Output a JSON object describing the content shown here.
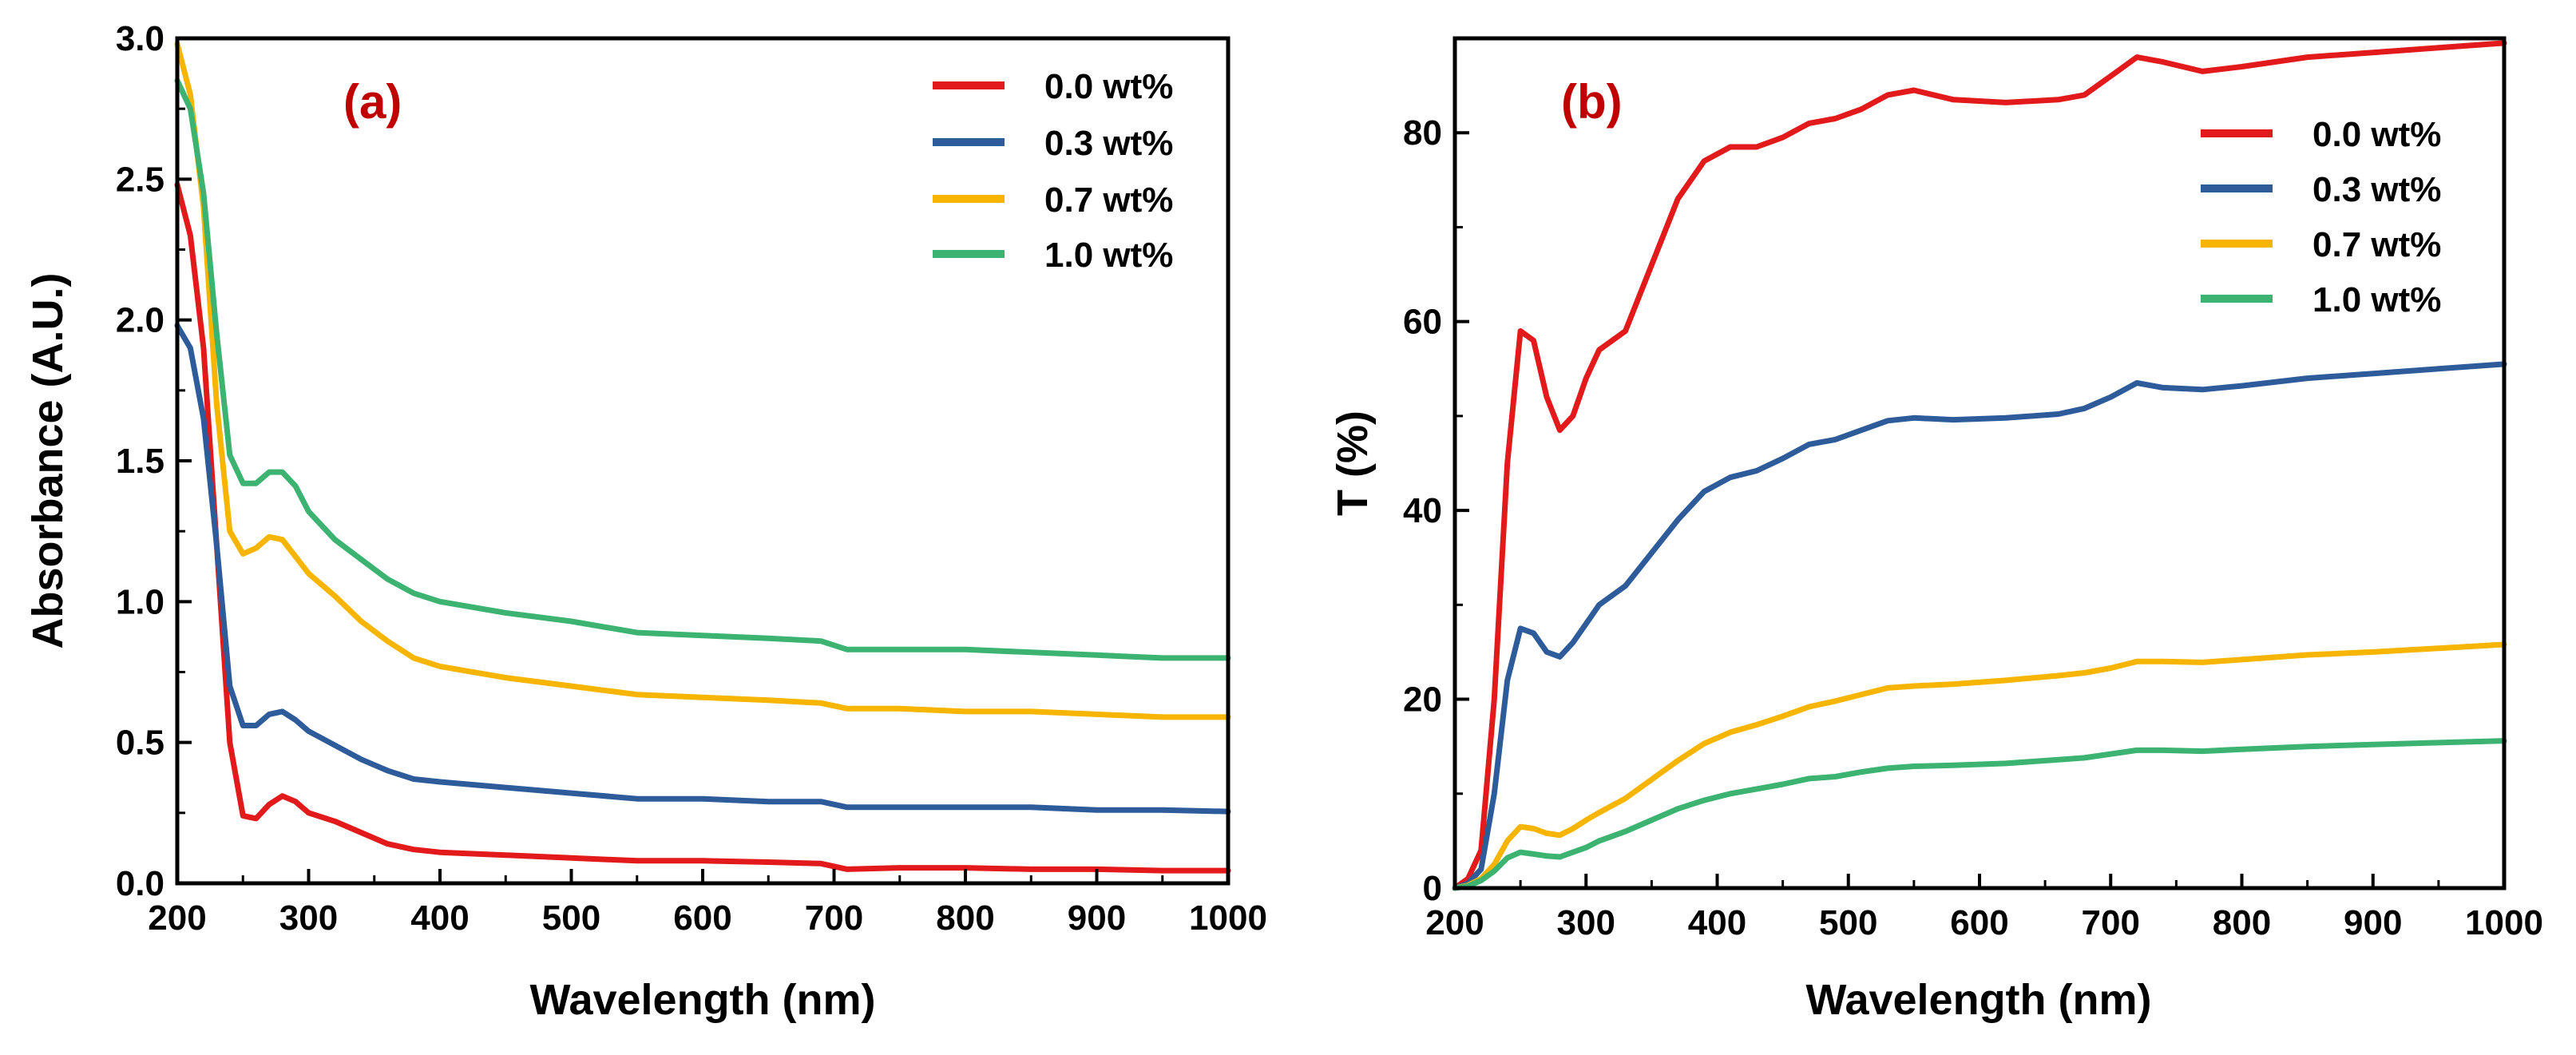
{
  "chart_data": [
    {
      "type": "line",
      "panel_label": "(a)",
      "title": "",
      "xlabel": "Wavelength (nm)",
      "ylabel": "Absorbance (A.U.)",
      "xlim": [
        200,
        1000
      ],
      "ylim": [
        0,
        3.0
      ],
      "xticks": [
        200,
        300,
        400,
        500,
        600,
        700,
        800,
        900,
        1000
      ],
      "xtick_labels": [
        "200",
        "300",
        "400",
        "500",
        "600",
        "700",
        "800",
        "900",
        "1000"
      ],
      "yticks": [
        0,
        0.5,
        1.0,
        1.5,
        2.0,
        2.5,
        3.0
      ],
      "ytick_labels": [
        "0.0",
        "0.5",
        "1.0",
        "1.5",
        "2.0",
        "2.5",
        "3.0"
      ],
      "grid": false,
      "legend_position": "top-right",
      "series": [
        {
          "name": "0.0 wt%",
          "color": "#e31a1c",
          "x": [
            200,
            210,
            220,
            230,
            240,
            250,
            260,
            270,
            280,
            290,
            300,
            320,
            340,
            360,
            380,
            400,
            450,
            500,
            550,
            600,
            650,
            690,
            710,
            750,
            800,
            850,
            900,
            950,
            1000
          ],
          "y": [
            2.48,
            2.3,
            1.9,
            1.2,
            0.5,
            0.24,
            0.23,
            0.28,
            0.31,
            0.29,
            0.25,
            0.22,
            0.18,
            0.14,
            0.12,
            0.11,
            0.1,
            0.09,
            0.08,
            0.08,
            0.075,
            0.07,
            0.05,
            0.055,
            0.055,
            0.05,
            0.05,
            0.045,
            0.045
          ]
        },
        {
          "name": "0.3 wt%",
          "color": "#2e5c9a",
          "x": [
            200,
            210,
            220,
            230,
            240,
            250,
            260,
            270,
            280,
            290,
            300,
            320,
            340,
            360,
            380,
            400,
            450,
            500,
            550,
            600,
            650,
            690,
            710,
            750,
            800,
            850,
            900,
            950,
            1000
          ],
          "y": [
            1.98,
            1.9,
            1.65,
            1.2,
            0.7,
            0.56,
            0.56,
            0.6,
            0.61,
            0.58,
            0.54,
            0.49,
            0.44,
            0.4,
            0.37,
            0.36,
            0.34,
            0.32,
            0.3,
            0.3,
            0.29,
            0.29,
            0.27,
            0.27,
            0.27,
            0.27,
            0.26,
            0.26,
            0.255
          ]
        },
        {
          "name": "0.7 wt%",
          "color": "#f7b500",
          "x": [
            200,
            210,
            220,
            230,
            240,
            250,
            260,
            270,
            280,
            290,
            300,
            320,
            340,
            360,
            380,
            400,
            450,
            500,
            550,
            600,
            650,
            690,
            710,
            750,
            800,
            850,
            900,
            950,
            1000
          ],
          "y": [
            2.98,
            2.8,
            2.4,
            1.7,
            1.25,
            1.17,
            1.19,
            1.23,
            1.22,
            1.16,
            1.1,
            1.02,
            0.93,
            0.86,
            0.8,
            0.77,
            0.73,
            0.7,
            0.67,
            0.66,
            0.65,
            0.64,
            0.62,
            0.62,
            0.61,
            0.61,
            0.6,
            0.59,
            0.59
          ]
        },
        {
          "name": "1.0 wt%",
          "color": "#3cb371",
          "x": [
            200,
            210,
            220,
            230,
            240,
            250,
            260,
            270,
            280,
            290,
            300,
            320,
            340,
            360,
            380,
            400,
            450,
            500,
            550,
            600,
            650,
            690,
            710,
            750,
            800,
            850,
            900,
            950,
            1000
          ],
          "y": [
            2.85,
            2.75,
            2.45,
            1.95,
            1.52,
            1.42,
            1.42,
            1.46,
            1.46,
            1.41,
            1.32,
            1.22,
            1.15,
            1.08,
            1.03,
            1.0,
            0.96,
            0.93,
            0.89,
            0.88,
            0.87,
            0.86,
            0.83,
            0.83,
            0.83,
            0.82,
            0.81,
            0.8,
            0.8
          ]
        }
      ]
    },
    {
      "type": "line",
      "panel_label": "(b)",
      "title": "",
      "xlabel": "Wavelength (nm)",
      "ylabel": "T (%)",
      "xlim": [
        200,
        1000
      ],
      "ylim": [
        0,
        90
      ],
      "xticks": [
        200,
        300,
        400,
        500,
        600,
        700,
        800,
        900,
        1000
      ],
      "xtick_labels": [
        "200",
        "300",
        "400",
        "500",
        "600",
        "700",
        "800",
        "900",
        "1000"
      ],
      "yticks": [
        0,
        20,
        40,
        60,
        80
      ],
      "ytick_labels": [
        "0",
        "20",
        "40",
        "60",
        "80"
      ],
      "grid": false,
      "legend_position": "top-right",
      "series": [
        {
          "name": "0.0 wt%",
          "color": "#e31a1c",
          "x": [
            200,
            210,
            220,
            230,
            240,
            250,
            260,
            270,
            280,
            290,
            300,
            310,
            330,
            350,
            370,
            390,
            410,
            430,
            450,
            470,
            490,
            510,
            530,
            550,
            580,
            620,
            660,
            680,
            700,
            720,
            740,
            770,
            800,
            850,
            900,
            950,
            1000
          ],
          "y": [
            0,
            1,
            4,
            20,
            45,
            59,
            58,
            52,
            48.5,
            50,
            54,
            57,
            59,
            66,
            73,
            77,
            78.5,
            78.5,
            79.5,
            81,
            81.5,
            82.5,
            84,
            84.5,
            83.5,
            83.2,
            83.5,
            84,
            86,
            88,
            87.5,
            86.5,
            87,
            88,
            88.5,
            89,
            89.5
          ]
        },
        {
          "name": "0.3 wt%",
          "color": "#2e5c9a",
          "x": [
            200,
            210,
            220,
            230,
            240,
            250,
            260,
            270,
            280,
            290,
            300,
            310,
            330,
            350,
            370,
            390,
            410,
            430,
            450,
            470,
            490,
            510,
            530,
            550,
            580,
            620,
            660,
            680,
            700,
            720,
            740,
            770,
            800,
            850,
            900,
            950,
            1000
          ],
          "y": [
            0,
            0.5,
            2,
            10,
            22,
            27.5,
            27,
            25,
            24.5,
            26,
            28,
            30,
            32,
            35.5,
            39,
            42,
            43.5,
            44.2,
            45.5,
            47,
            47.5,
            48.5,
            49.5,
            49.8,
            49.6,
            49.8,
            50.2,
            50.8,
            52,
            53.5,
            53,
            52.8,
            53.2,
            54,
            54.5,
            55,
            55.5
          ]
        },
        {
          "name": "0.7 wt%",
          "color": "#f7b500",
          "x": [
            200,
            210,
            220,
            230,
            240,
            250,
            260,
            270,
            280,
            290,
            300,
            310,
            330,
            350,
            370,
            390,
            410,
            430,
            450,
            470,
            490,
            510,
            530,
            550,
            580,
            620,
            660,
            680,
            700,
            720,
            740,
            770,
            800,
            850,
            900,
            950,
            1000
          ],
          "y": [
            0,
            0.3,
            1,
            2.5,
            5,
            6.5,
            6.3,
            5.8,
            5.6,
            6.3,
            7.2,
            8,
            9.5,
            11.5,
            13.5,
            15.3,
            16.5,
            17.3,
            18.2,
            19.2,
            19.8,
            20.5,
            21.2,
            21.4,
            21.6,
            22,
            22.5,
            22.8,
            23.3,
            24,
            24,
            23.9,
            24.2,
            24.7,
            25,
            25.4,
            25.8
          ]
        },
        {
          "name": "1.0 wt%",
          "color": "#3cb371",
          "x": [
            200,
            210,
            220,
            230,
            240,
            250,
            260,
            270,
            280,
            290,
            300,
            310,
            330,
            350,
            370,
            390,
            410,
            430,
            450,
            470,
            490,
            510,
            530,
            550,
            580,
            620,
            660,
            680,
            700,
            720,
            740,
            770,
            800,
            850,
            900,
            950,
            1000
          ],
          "y": [
            0,
            0.2,
            0.8,
            1.8,
            3.2,
            3.8,
            3.6,
            3.4,
            3.3,
            3.8,
            4.3,
            5,
            6,
            7.2,
            8.4,
            9.3,
            10,
            10.5,
            11,
            11.6,
            11.8,
            12.3,
            12.7,
            12.9,
            13,
            13.2,
            13.6,
            13.8,
            14.2,
            14.6,
            14.6,
            14.5,
            14.7,
            15,
            15.2,
            15.4,
            15.6
          ]
        }
      ]
    }
  ]
}
